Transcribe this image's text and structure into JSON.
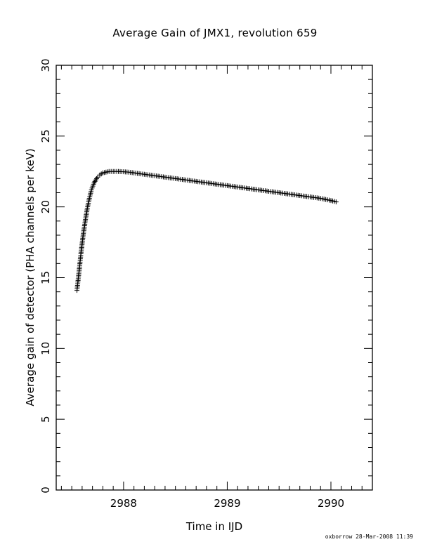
{
  "chart_data": {
    "type": "scatter",
    "title": "Average Gain of JMX1, revolution 659",
    "xlabel": "Time in IJD",
    "ylabel": "Average gain of detector (PHA channels per keV)",
    "xlim": [
      2987.35,
      2990.4
    ],
    "ylim": [
      0,
      30
    ],
    "x_ticks": [
      2988,
      2989,
      2990
    ],
    "y_ticks": [
      0,
      5,
      10,
      15,
      20,
      25,
      30
    ],
    "grid": false,
    "marker": "+",
    "series": [
      {
        "x": [
          2987.55,
          2987.57,
          2987.59,
          2987.61,
          2987.63,
          2987.65,
          2987.67,
          2987.69,
          2987.71,
          2987.73,
          2987.75,
          2987.77,
          2987.8,
          2987.83,
          2987.86,
          2987.9,
          2987.95,
          2988.0,
          2988.05,
          2988.1,
          2988.2,
          2988.3,
          2988.4,
          2988.5,
          2988.6,
          2988.7,
          2988.8,
          2988.9,
          2989.0,
          2989.1,
          2989.2,
          2989.3,
          2989.4,
          2989.5,
          2989.6,
          2989.7,
          2989.8,
          2989.9,
          2990.0,
          2990.05
        ],
        "y": [
          14.1,
          15.4,
          16.8,
          18.0,
          19.0,
          19.9,
          20.6,
          21.2,
          21.6,
          21.9,
          22.1,
          22.25,
          22.4,
          22.45,
          22.5,
          22.5,
          22.5,
          22.48,
          22.45,
          22.4,
          22.3,
          22.2,
          22.1,
          22.0,
          21.9,
          21.8,
          21.7,
          21.6,
          21.5,
          21.4,
          21.3,
          21.2,
          21.1,
          21.0,
          20.9,
          20.8,
          20.7,
          20.6,
          20.45,
          20.35
        ]
      }
    ]
  },
  "footer": {
    "stamp": "oxborrow 28-Mar-2008 11:39"
  }
}
